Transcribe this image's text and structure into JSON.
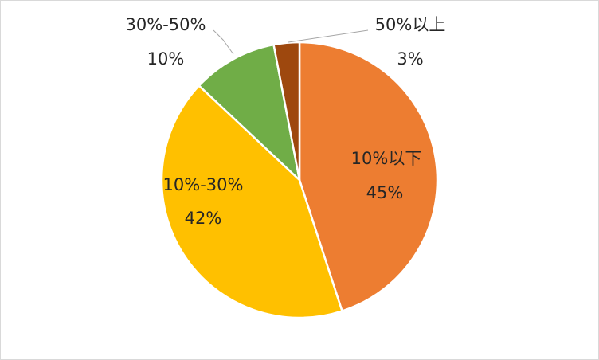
{
  "chart_data": {
    "type": "pie",
    "title": "",
    "slices": [
      {
        "category": "10%以下",
        "value": 45,
        "value_label": "45%",
        "color": "#ED7D31"
      },
      {
        "category": "10%-30%",
        "value": 42,
        "value_label": "42%",
        "color": "#FFC000"
      },
      {
        "category": "30%-50%",
        "value": 10,
        "value_label": "10%",
        "color": "#70AD47"
      },
      {
        "category": "50%以上",
        "value": 3,
        "value_label": "3%",
        "color": "#9E480E"
      }
    ],
    "start_angle_deg": 0,
    "direction": "clockwise",
    "legend": "none",
    "data_labels": "category-and-percent"
  }
}
